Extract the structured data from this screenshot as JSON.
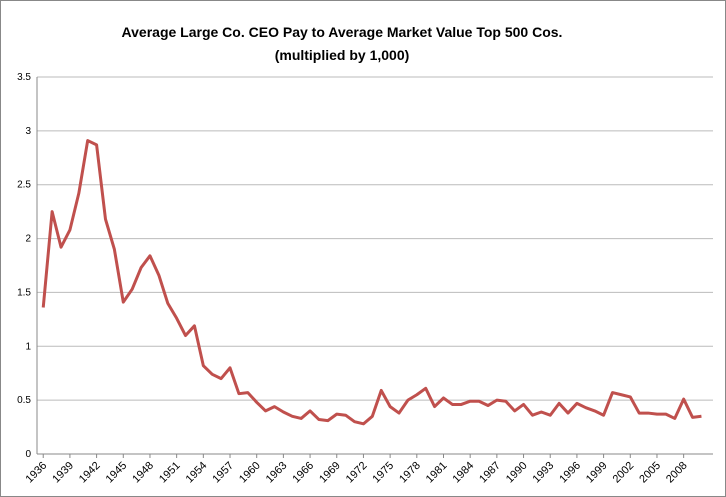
{
  "chart_data": {
    "type": "line",
    "title": "Average Large Co. CEO Pay to Average Market Value  Top 500 Cos.",
    "subtitle": "(multiplied by 1,000)",
    "x": [
      1936,
      1937,
      1938,
      1939,
      1940,
      1941,
      1942,
      1943,
      1944,
      1945,
      1946,
      1947,
      1948,
      1949,
      1950,
      1951,
      1952,
      1953,
      1954,
      1955,
      1956,
      1957,
      1958,
      1959,
      1960,
      1961,
      1962,
      1963,
      1964,
      1965,
      1966,
      1967,
      1968,
      1969,
      1970,
      1971,
      1972,
      1973,
      1974,
      1975,
      1976,
      1977,
      1978,
      1979,
      1980,
      1981,
      1982,
      1983,
      1984,
      1985,
      1986,
      1987,
      1988,
      1989,
      1990,
      1991,
      1992,
      1993,
      1994,
      1995,
      1996,
      1997,
      1998,
      1999,
      2000,
      2001,
      2002,
      2003,
      2004,
      2005,
      2006,
      2007,
      2008,
      2009,
      2010
    ],
    "series": [
      {
        "color": "#c0504d",
        "values": [
          1.36,
          2.25,
          1.92,
          2.08,
          2.42,
          2.91,
          2.87,
          2.18,
          1.9,
          1.41,
          1.53,
          1.73,
          1.84,
          1.66,
          1.4,
          1.26,
          1.1,
          1.19,
          0.82,
          0.74,
          0.7,
          0.8,
          0.56,
          0.57,
          0.48,
          0.4,
          0.44,
          0.39,
          0.35,
          0.33,
          0.4,
          0.32,
          0.31,
          0.37,
          0.36,
          0.3,
          0.28,
          0.35,
          0.59,
          0.44,
          0.38,
          0.5,
          0.55,
          0.61,
          0.44,
          0.52,
          0.46,
          0.46,
          0.49,
          0.49,
          0.45,
          0.5,
          0.49,
          0.4,
          0.46,
          0.36,
          0.39,
          0.36,
          0.47,
          0.38,
          0.47,
          0.43,
          0.4,
          0.36,
          0.57,
          0.55,
          0.53,
          0.38,
          0.38,
          0.37,
          0.37,
          0.33,
          0.51,
          0.34,
          0.35
        ]
      }
    ],
    "xlim": [
      1935.3,
      2011.3
    ],
    "xticks": [
      1936,
      1939,
      1942,
      1945,
      1948,
      1951,
      1954,
      1957,
      1960,
      1963,
      1966,
      1969,
      1972,
      1975,
      1978,
      1981,
      1984,
      1987,
      1990,
      1993,
      1996,
      1999,
      2002,
      2005,
      2008
    ],
    "ylim": [
      0,
      3.5
    ],
    "yticks": [
      0,
      0.5,
      1,
      1.5,
      2,
      2.5,
      3,
      {
        "value": 3.5,
        "label": "3.5"
      }
    ],
    "grid": true
  }
}
